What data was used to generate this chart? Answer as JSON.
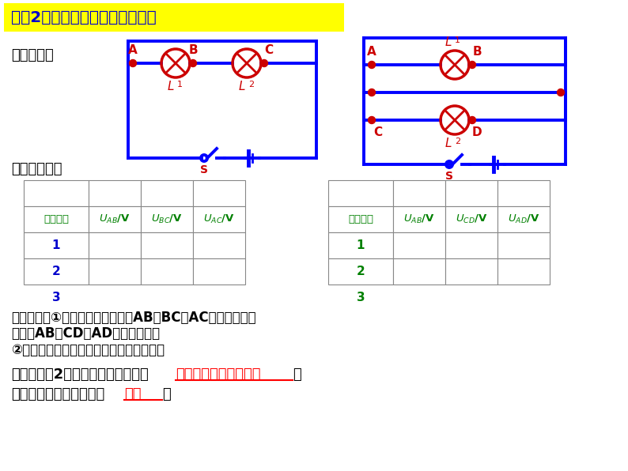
{
  "title": "考点2：串、并联电路的电压规律",
  "title_bg": "#FFFF00",
  "title_color": "#0000CC",
  "bg_color": "#FFFFFF",
  "section1": "实验电路图",
  "section2": "实验表格设计",
  "table1_header": [
    "实验次数",
    "U_AB/V",
    "U_BC/V",
    "U_AC/V"
  ],
  "table2_header": [
    "实验次数",
    "U_AB/V",
    "U_CD/V",
    "U_AD/V"
  ],
  "table_rows": [
    "1",
    "2",
    "3"
  ],
  "steps_text": [
    "实验步骤：①用电压表分别测量出AB、BC、AC之间的电压。",
    "（并联AB、CD、AD之间的电压）",
    "②换用规格不同的小灯泡再进行多次实验。"
  ],
  "conclusion_line1_prefix": "实验结论：2．串联电路总电压等于",
  "conclusion_line1_red": "各用电器两端电压之和",
  "conclusion_line1_suffix": "，",
  "conclusion_line2_prefix": "并联电路各支路两端电压",
  "conclusion_line2_red": "相等",
  "conclusion_line2_suffix": "．",
  "blue": "#0000FF",
  "dark_blue": "#0000CC",
  "red": "#CC0000",
  "green": "#008000",
  "black": "#000000",
  "gray": "#888888"
}
